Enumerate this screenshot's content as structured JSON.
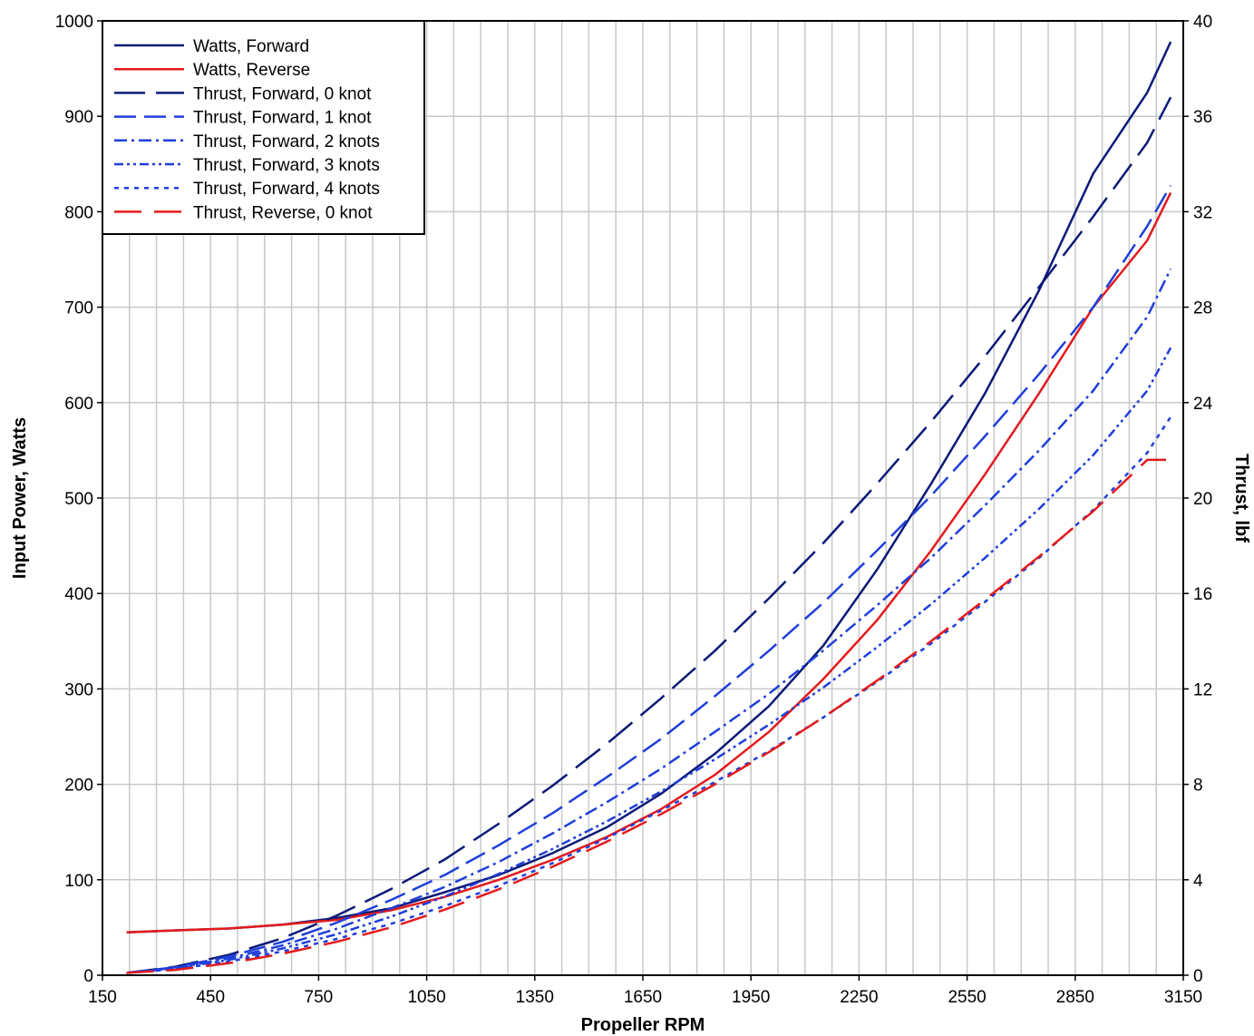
{
  "chart_data": {
    "type": "line",
    "title": "",
    "xlabel": "Propeller RPM",
    "ylabel": "Input Power, Watts",
    "y2label": "Thrust, lbf",
    "xlim": [
      150,
      3150
    ],
    "ylim": [
      0,
      1000
    ],
    "y2lim": [
      0,
      40
    ],
    "xticks": [
      "150",
      "450",
      "750",
      "1050",
      "1350",
      "1650",
      "1950",
      "2250",
      "2550",
      "2850",
      "3150"
    ],
    "yticks": [
      "0",
      "100",
      "200",
      "300",
      "400",
      "500",
      "600",
      "700",
      "800",
      "900",
      "1000"
    ],
    "y2ticks": [
      "0",
      "4",
      "8",
      "12",
      "16",
      "20",
      "24",
      "28",
      "32",
      "36",
      "40"
    ],
    "grid": true,
    "legend_position": "top-left",
    "series": [
      {
        "name": "Watts, Forward",
        "axis": "left",
        "color": "#0b1a78",
        "dash": "",
        "x": [
          217,
          350,
          500,
          650,
          800,
          950,
          1100,
          1250,
          1400,
          1550,
          1700,
          1850,
          2000,
          2150,
          2300,
          2450,
          2600,
          2750,
          2900,
          3050,
          3115
        ],
        "y": [
          45,
          47,
          49,
          53,
          60,
          70,
          87,
          105,
          128,
          155,
          190,
          232,
          282,
          345,
          425,
          515,
          610,
          718,
          840,
          925,
          978
        ]
      },
      {
        "name": "Watts, Reverse",
        "axis": "left",
        "color": "#e41a1c",
        "dash": "",
        "x": [
          217,
          350,
          500,
          650,
          800,
          950,
          1100,
          1250,
          1400,
          1550,
          1700,
          1850,
          2000,
          2150,
          2300,
          2450,
          2600,
          2750,
          2900,
          3050,
          3115
        ],
        "y": [
          45,
          47,
          49,
          53,
          58,
          68,
          82,
          100,
          121,
          145,
          174,
          210,
          255,
          310,
          372,
          445,
          525,
          610,
          700,
          770,
          820
        ]
      },
      {
        "name": "Thrust, Forward, 0 knot",
        "axis": "right",
        "color": "#0b1a78",
        "dash": "34 12",
        "x": [
          217,
          350,
          500,
          650,
          800,
          950,
          1100,
          1250,
          1400,
          1550,
          1700,
          1850,
          2000,
          2150,
          2300,
          2450,
          2600,
          2750,
          2900,
          3050,
          3115
        ],
        "y": [
          0.1,
          0.35,
          0.85,
          1.55,
          2.5,
          3.6,
          4.85,
          6.35,
          7.95,
          9.7,
          11.6,
          13.6,
          15.8,
          18.1,
          20.6,
          23.2,
          25.95,
          28.85,
          31.8,
          34.9,
          36.8
        ]
      },
      {
        "name": "Thrust, Forward, 1 knot",
        "axis": "right",
        "color": "#1f3fd9",
        "dash": "24 9",
        "x": [
          217,
          350,
          500,
          650,
          800,
          950,
          1100,
          1250,
          1400,
          1550,
          1700,
          1850,
          2000,
          2150,
          2300,
          2450,
          2600,
          2750,
          2900,
          3050,
          3115
        ],
        "y": [
          0.1,
          0.33,
          0.78,
          1.4,
          2.2,
          3.15,
          4.2,
          5.45,
          6.8,
          8.3,
          9.9,
          11.7,
          13.6,
          15.6,
          17.8,
          20.1,
          22.6,
          25.2,
          28.0,
          31.4,
          33.1
        ]
      },
      {
        "name": "Thrust, Forward, 2 knots",
        "axis": "right",
        "color": "#1f3fd9",
        "dash": "14 5 3 5",
        "x": [
          217,
          350,
          500,
          650,
          800,
          950,
          1100,
          1250,
          1400,
          1550,
          1700,
          1850,
          2000,
          2150,
          2300,
          2450,
          2600,
          2750,
          2900,
          3050,
          3115
        ],
        "y": [
          0.1,
          0.3,
          0.7,
          1.25,
          1.95,
          2.8,
          3.7,
          4.75,
          5.95,
          7.25,
          8.65,
          10.2,
          11.8,
          13.6,
          15.5,
          17.5,
          19.7,
          22.0,
          24.5,
          27.6,
          29.6
        ]
      },
      {
        "name": "Thrust, Forward, 3 knots",
        "axis": "right",
        "color": "#1f3fd9",
        "dash": "10 4 3 4 3 4",
        "x": [
          217,
          350,
          500,
          650,
          800,
          950,
          1100,
          1250,
          1400,
          1550,
          1700,
          1850,
          2000,
          2150,
          2300,
          2450,
          2600,
          2750,
          2900,
          3050,
          3115
        ],
        "y": [
          0.1,
          0.28,
          0.64,
          1.12,
          1.72,
          2.45,
          3.3,
          4.25,
          5.3,
          6.45,
          7.7,
          9.05,
          10.5,
          12.05,
          13.75,
          15.55,
          17.5,
          19.55,
          21.8,
          24.5,
          26.3
        ]
      },
      {
        "name": "Thrust, Forward, 4 knots",
        "axis": "right",
        "color": "#1f3fd9",
        "dash": "5 6",
        "x": [
          217,
          350,
          500,
          650,
          800,
          950,
          1100,
          1250,
          1400,
          1550,
          1700,
          1850,
          2000,
          2150,
          2300,
          2450,
          2600,
          2750,
          2900,
          3050,
          3115
        ],
        "y": [
          0.1,
          0.25,
          0.57,
          1.0,
          1.52,
          2.15,
          2.9,
          3.75,
          4.7,
          5.75,
          6.9,
          8.1,
          9.4,
          10.8,
          12.3,
          13.9,
          15.65,
          17.5,
          19.5,
          21.9,
          23.4
        ]
      },
      {
        "name": "Thrust, Reverse, 0 knot",
        "axis": "right",
        "color": "#e41a1c",
        "dash": "30 14",
        "x": [
          217,
          350,
          500,
          650,
          800,
          950,
          1100,
          1250,
          1400,
          1550,
          1700,
          1850,
          2000,
          2150,
          2300,
          2450,
          2600,
          2750,
          2900,
          3050,
          3115
        ],
        "y": [
          0.1,
          0.22,
          0.5,
          0.9,
          1.4,
          2.0,
          2.75,
          3.6,
          4.55,
          5.6,
          6.75,
          8.0,
          9.35,
          10.8,
          12.35,
          14.0,
          15.75,
          17.55,
          19.45,
          21.6,
          21.6
        ]
      }
    ]
  }
}
